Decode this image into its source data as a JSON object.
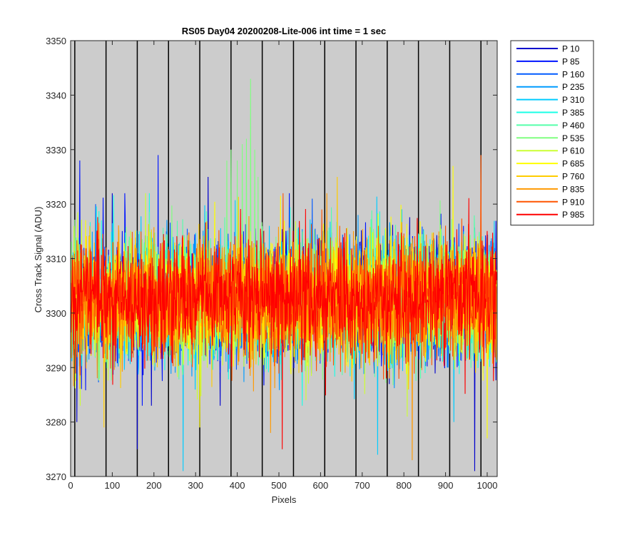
{
  "chart_data": {
    "type": "line",
    "title": "RS05 Day04 20200208-Lite-006 int time = 1 sec",
    "xlabel": "Pixels",
    "ylabel": "Cross Track Signal (ADU)",
    "xlim": [
      0,
      1024
    ],
    "ylim": [
      3270,
      3350
    ],
    "x_ticks": [
      0,
      100,
      200,
      300,
      400,
      500,
      600,
      700,
      800,
      900,
      1000
    ],
    "y_ticks": [
      3270,
      3280,
      3290,
      3300,
      3310,
      3320,
      3330,
      3340,
      3350
    ],
    "x_tick_labels": [
      "0",
      "100",
      "200",
      "300",
      "400",
      "500",
      "600",
      "700",
      "800",
      "900",
      "1000"
    ],
    "y_tick_labels": [
      "3270",
      "3280",
      "3290",
      "3300",
      "3310",
      "3320",
      "3330",
      "3340",
      "3350"
    ],
    "vertical_markers": [
      10,
      85,
      160,
      235,
      310,
      385,
      460,
      535,
      610,
      685,
      760,
      835,
      910,
      985
    ],
    "background_color": "#cccccc",
    "grid": false,
    "legend_position": "outside-right",
    "x_samples": 1024,
    "series": [
      {
        "name": "P 10",
        "color": "#0000cc",
        "mean": 3302.5,
        "spread": 7.5,
        "outliers": [
          [
            160,
            3275
          ],
          [
            970,
            3271
          ],
          [
            15,
            3280
          ],
          [
            330,
            3325
          ],
          [
            100,
            3322
          ]
        ]
      },
      {
        "name": "P 85",
        "color": "#0014ff",
        "mean": 3302.5,
        "spread": 7.5,
        "outliers": [
          [
            22,
            3328
          ],
          [
            210,
            3329
          ],
          [
            130,
            3322
          ],
          [
            525,
            3322
          ]
        ]
      },
      {
        "name": "P 160",
        "color": "#005aff",
        "mean": 3302.5,
        "spread": 7.5,
        "outliers": [
          [
            60,
            3320
          ],
          [
            580,
            3321
          ]
        ]
      },
      {
        "name": "P 235",
        "color": "#009bff",
        "mean": 3302.5,
        "spread": 7.5,
        "outliers": [
          [
            690,
            3318
          ]
        ]
      },
      {
        "name": "P 310",
        "color": "#00ccff",
        "mean": 3302.5,
        "spread": 7.5,
        "outliers": [
          [
            270,
            3271
          ],
          [
            737,
            3274
          ],
          [
            920,
            3280
          ]
        ]
      },
      {
        "name": "P 385",
        "color": "#19ffe6",
        "mean": 3302.5,
        "spread": 7.5,
        "outliers": [
          [
            556,
            3283
          ]
        ]
      },
      {
        "name": "P 460",
        "color": "#55ffaa",
        "mean": 3302.5,
        "spread": 7.5,
        "outliers": []
      },
      {
        "name": "P 535",
        "color": "#80ff80",
        "mean": 3302.5,
        "spread": 7.5,
        "outliers": [
          [
            375,
            3328
          ],
          [
            385,
            3330
          ],
          [
            400,
            3328
          ],
          [
            412,
            3331
          ],
          [
            422,
            3332
          ],
          [
            432,
            3343
          ],
          [
            442,
            3330
          ],
          [
            450,
            3325
          ]
        ]
      },
      {
        "name": "P 610",
        "color": "#ccff33",
        "mean": 3302.5,
        "spread": 7.5,
        "outliers": [
          [
            180,
            3322
          ],
          [
            808,
            3281
          ]
        ]
      },
      {
        "name": "P 685",
        "color": "#ffff00",
        "mean": 3302.5,
        "spread": 7.5,
        "outliers": [
          [
            310,
            3279
          ],
          [
            1000,
            3277
          ],
          [
            918,
            3327
          ]
        ]
      },
      {
        "name": "P 760",
        "color": "#ffcc00",
        "mean": 3302.5,
        "spread": 7.5,
        "outliers": [
          [
            80,
            3279
          ],
          [
            640,
            3325
          ]
        ]
      },
      {
        "name": "P 835",
        "color": "#ff9900",
        "mean": 3302.5,
        "spread": 7.5,
        "outliers": [
          [
            480,
            3278
          ],
          [
            820,
            3273
          ],
          [
            615,
            3322
          ]
        ]
      },
      {
        "name": "P 910",
        "color": "#ff5500",
        "mean": 3302.5,
        "spread": 7.5,
        "outliers": [
          [
            985,
            3329
          ],
          [
            510,
            3322
          ]
        ]
      },
      {
        "name": "P 985",
        "color": "#ff0000",
        "mean": 3302.5,
        "spread": 7.5,
        "outliers": [
          [
            508,
            3275
          ]
        ]
      }
    ]
  }
}
